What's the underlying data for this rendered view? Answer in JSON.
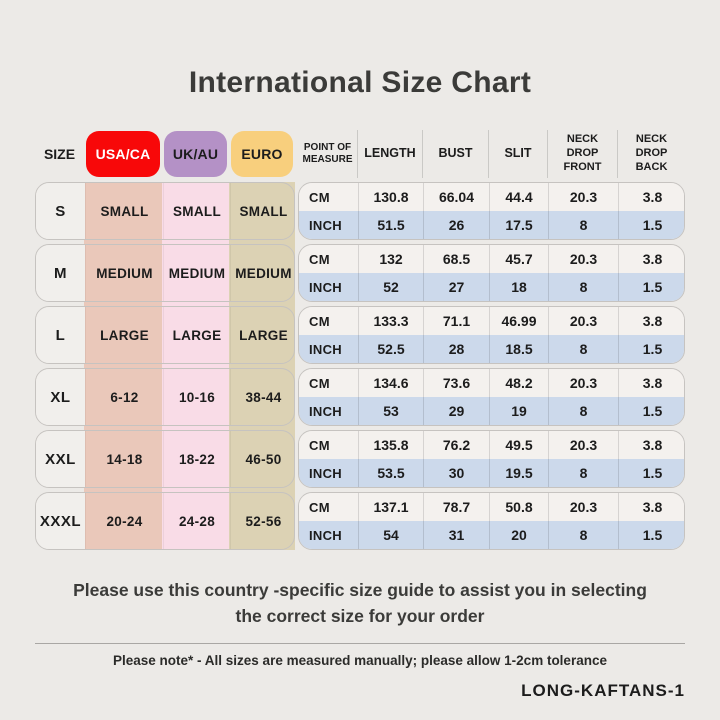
{
  "title": "International Size Chart",
  "colors": {
    "page_bg": "#ECEAE7",
    "title_text": "#3B3B39",
    "body_text": "#1C1C1C",
    "usa_header_bg": "#F80809",
    "usa_header_text": "#FFFFFF",
    "uk_header_bg": "#B491C6",
    "euro_header_bg": "#F8CF7D",
    "usa_col_bg": "#EAC8BA",
    "uk_col_bg": "#F9DCE7",
    "euro_col_bg": "#DCD2B4",
    "size_col_bg": "#F1EFEC",
    "cm_row_bg": "#F4F1EE",
    "inch_row_bg": "#CCD9EB",
    "block_border": "#C6C3C0",
    "divider": "#A9A7A4"
  },
  "table": {
    "size_header": "SIZE",
    "region_headers": {
      "usa": "USA/CA",
      "uk": "UK/AU",
      "euro": "EURO"
    },
    "measure_headers": [
      "POINT OF MEASURE",
      "LENGTH",
      "BUST",
      "SLIT",
      "NECK DROP FRONT",
      "NECK DROP BACK"
    ],
    "unit_labels": [
      "CM",
      "INCH"
    ],
    "rows": [
      {
        "size": "S",
        "usa_ca": "SMALL",
        "uk_au": "SMALL",
        "euro": "SMALL",
        "cm": [
          "130.8",
          "66.04",
          "44.4",
          "20.3",
          "3.8"
        ],
        "inch": [
          "51.5",
          "26",
          "17.5",
          "8",
          "1.5"
        ]
      },
      {
        "size": "M",
        "usa_ca": "MEDIUM",
        "uk_au": "MEDIUM",
        "euro": "MEDIUM",
        "cm": [
          "132",
          "68.5",
          "45.7",
          "20.3",
          "3.8"
        ],
        "inch": [
          "52",
          "27",
          "18",
          "8",
          "1.5"
        ]
      },
      {
        "size": "L",
        "usa_ca": "LARGE",
        "uk_au": "LARGE",
        "euro": "LARGE",
        "cm": [
          "133.3",
          "71.1",
          "46.99",
          "20.3",
          "3.8"
        ],
        "inch": [
          "52.5",
          "28",
          "18.5",
          "8",
          "1.5"
        ]
      },
      {
        "size": "XL",
        "usa_ca": "6-12",
        "uk_au": "10-16",
        "euro": "38-44",
        "cm": [
          "134.6",
          "73.6",
          "48.2",
          "20.3",
          "3.8"
        ],
        "inch": [
          "53",
          "29",
          "19",
          "8",
          "1.5"
        ]
      },
      {
        "size": "XXL",
        "usa_ca": "14-18",
        "uk_au": "18-22",
        "euro": "46-50",
        "cm": [
          "135.8",
          "76.2",
          "49.5",
          "20.3",
          "3.8"
        ],
        "inch": [
          "53.5",
          "30",
          "19.5",
          "8",
          "1.5"
        ]
      },
      {
        "size": "XXXL",
        "usa_ca": "20-24",
        "uk_au": "24-28",
        "euro": "52-56",
        "cm": [
          "137.1",
          "78.7",
          "50.8",
          "20.3",
          "3.8"
        ],
        "inch": [
          "54",
          "31",
          "20",
          "8",
          "1.5"
        ]
      }
    ]
  },
  "footer": {
    "guide_line1": "Please use this country -specific size guide to assist you in selecting",
    "guide_line2": "the correct size for your order",
    "note_text": "Please note* - All sizes are measured manually; please allow 1-2cm tolerance",
    "sku": "LONG-KAFTANS-1"
  }
}
